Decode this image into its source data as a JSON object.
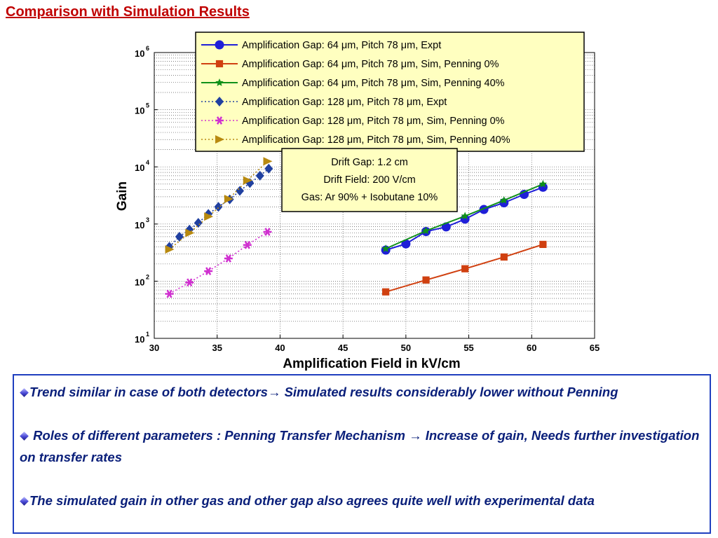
{
  "slide": {
    "title": "Comparison with Simulation Results"
  },
  "notes": [
    {
      "bullet_icon": "diamond-bullet",
      "text": "Trend similar  in case of both detectors→ Simulated results considerably lower without Penning"
    },
    {
      "bullet_icon": "diamond-bullet",
      "text": " Roles of different parameters  : Penning Transfer Mechanism → Increase of gain,  Needs further investigation on  transfer rates"
    },
    {
      "bullet_icon": "diamond-bullet",
      "text": "The simulated gain in other gas and other gap also agrees quite well with experimental data"
    }
  ],
  "colors": {
    "title": "#c00000",
    "notes_text": "#0a1f7a",
    "notes_border": "#1f3fbf",
    "legend_bg": "#ffffc0"
  },
  "chart_data": {
    "type": "line",
    "xlabel": "Amplification Field in kV/cm",
    "ylabel": "Gain",
    "xlim": [
      30,
      65
    ],
    "ylim": [
      10,
      1000000
    ],
    "yscale": "log",
    "x_ticks": [
      "30",
      "35",
      "40",
      "45",
      "50",
      "55",
      "60",
      "65"
    ],
    "y_ticks": [
      {
        "base": "10",
        "exp": "1",
        "value": 10
      },
      {
        "base": "10",
        "exp": "2",
        "value": 100
      },
      {
        "base": "10",
        "exp": "3",
        "value": 1000
      },
      {
        "base": "10",
        "exp": "4",
        "value": 10000
      },
      {
        "base": "10",
        "exp": "5",
        "value": 100000
      },
      {
        "base": "10",
        "exp": "6",
        "value": 1000000
      }
    ],
    "grid": "dotted",
    "legend_position": "top-right",
    "series": [
      {
        "name": "Amplification Gap: 64 μm, Pitch 78 μm, Expt",
        "color": "#1f1fd8",
        "marker": "circle",
        "line": "solid",
        "points": [
          [
            48.4,
            350
          ],
          [
            50.0,
            450
          ],
          [
            51.6,
            740
          ],
          [
            53.2,
            890
          ],
          [
            54.7,
            1220
          ],
          [
            56.2,
            1800
          ],
          [
            57.8,
            2350
          ],
          [
            59.4,
            3300
          ],
          [
            60.9,
            4400
          ]
        ]
      },
      {
        "name": "Amplification Gap: 64 μm, Pitch 78 μm, Sim, Penning 0%",
        "color": "#d04010",
        "marker": "square",
        "line": "solid",
        "points": [
          [
            48.4,
            65
          ],
          [
            51.6,
            105
          ],
          [
            54.7,
            165
          ],
          [
            57.8,
            265
          ],
          [
            60.9,
            440
          ]
        ]
      },
      {
        "name": "Amplification Gap: 64 μm, Pitch 78 μm, Sim, Penning 40%",
        "color": "#10901a",
        "marker": "star",
        "line": "solid",
        "points": [
          [
            48.4,
            370
          ],
          [
            51.6,
            760
          ],
          [
            54.7,
            1380
          ],
          [
            57.8,
            2600
          ],
          [
            60.9,
            5000
          ]
        ]
      },
      {
        "name": "Amplification Gap: 128 μm, Pitch 78 μm, Expt",
        "color": "#2040a0",
        "marker": "diamond",
        "line": "dotted",
        "points": [
          [
            31.2,
            400
          ],
          [
            32.0,
            600
          ],
          [
            32.8,
            800
          ],
          [
            33.5,
            1050
          ],
          [
            34.3,
            1500
          ],
          [
            35.1,
            2000
          ],
          [
            36.0,
            2700
          ],
          [
            36.8,
            3800
          ],
          [
            37.6,
            5200
          ],
          [
            38.4,
            7000
          ],
          [
            39.1,
            9300
          ]
        ]
      },
      {
        "name": "Amplification Gap: 128 μm, Pitch 78 μm, Sim, Penning 0%",
        "color": "#d030d0",
        "marker": "asterisk",
        "line": "dotted",
        "points": [
          [
            31.2,
            60
          ],
          [
            32.8,
            95
          ],
          [
            34.3,
            150
          ],
          [
            35.9,
            250
          ],
          [
            37.4,
            430
          ],
          [
            39.0,
            730
          ]
        ]
      },
      {
        "name": "Amplification Gap: 128 μm, Pitch 78 μm, Sim, Penning 40%",
        "color": "#b88a10",
        "marker": "triangle-right",
        "line": "dotted",
        "points": [
          [
            31.2,
            360
          ],
          [
            32.8,
            700
          ],
          [
            34.3,
            1350
          ],
          [
            35.9,
            2750
          ],
          [
            37.4,
            5800
          ],
          [
            39.0,
            12500
          ]
        ]
      }
    ],
    "annotation": {
      "lines": [
        "Drift Gap: 1.2 cm",
        "Drift Field: 200 V/cm",
        "Gas: Ar 90% + Isobutane 10%"
      ]
    }
  }
}
